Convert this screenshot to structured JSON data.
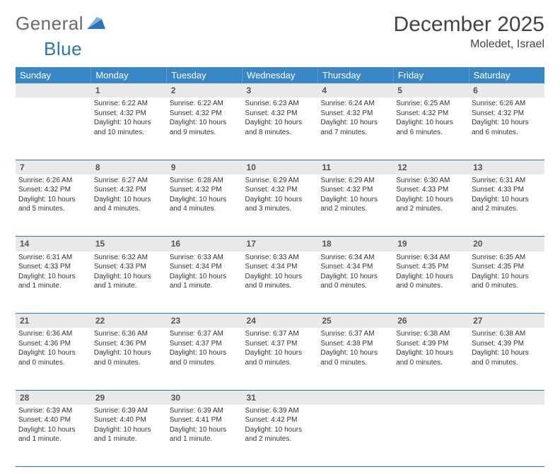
{
  "brand": {
    "word1": "General",
    "word2": "Blue"
  },
  "title": {
    "month": "December 2025",
    "location": "Moledet, Israel"
  },
  "colors": {
    "header_bg": "#3a87c8",
    "header_text": "#ffffff",
    "rule": "#2a74b8",
    "daynum_bg": "#e9e9e9",
    "logo_gray": "#6a6a6a",
    "logo_blue": "#2a74b8",
    "body_text": "#333333"
  },
  "weekdays": [
    "Sunday",
    "Monday",
    "Tuesday",
    "Wednesday",
    "Thursday",
    "Friday",
    "Saturday"
  ],
  "weeks": [
    {
      "nums": [
        "",
        "1",
        "2",
        "3",
        "4",
        "5",
        "6"
      ],
      "cells": [
        {},
        {
          "sunrise": "Sunrise: 6:22 AM",
          "sunset": "Sunset: 4:32 PM",
          "day1": "Daylight: 10 hours",
          "day2": "and 10 minutes."
        },
        {
          "sunrise": "Sunrise: 6:22 AM",
          "sunset": "Sunset: 4:32 PM",
          "day1": "Daylight: 10 hours",
          "day2": "and 9 minutes."
        },
        {
          "sunrise": "Sunrise: 6:23 AM",
          "sunset": "Sunset: 4:32 PM",
          "day1": "Daylight: 10 hours",
          "day2": "and 8 minutes."
        },
        {
          "sunrise": "Sunrise: 6:24 AM",
          "sunset": "Sunset: 4:32 PM",
          "day1": "Daylight: 10 hours",
          "day2": "and 7 minutes."
        },
        {
          "sunrise": "Sunrise: 6:25 AM",
          "sunset": "Sunset: 4:32 PM",
          "day1": "Daylight: 10 hours",
          "day2": "and 6 minutes."
        },
        {
          "sunrise": "Sunrise: 6:26 AM",
          "sunset": "Sunset: 4:32 PM",
          "day1": "Daylight: 10 hours",
          "day2": "and 6 minutes."
        }
      ]
    },
    {
      "nums": [
        "7",
        "8",
        "9",
        "10",
        "11",
        "12",
        "13"
      ],
      "cells": [
        {
          "sunrise": "Sunrise: 6:26 AM",
          "sunset": "Sunset: 4:32 PM",
          "day1": "Daylight: 10 hours",
          "day2": "and 5 minutes."
        },
        {
          "sunrise": "Sunrise: 6:27 AM",
          "sunset": "Sunset: 4:32 PM",
          "day1": "Daylight: 10 hours",
          "day2": "and 4 minutes."
        },
        {
          "sunrise": "Sunrise: 6:28 AM",
          "sunset": "Sunset: 4:32 PM",
          "day1": "Daylight: 10 hours",
          "day2": "and 4 minutes."
        },
        {
          "sunrise": "Sunrise: 6:29 AM",
          "sunset": "Sunset: 4:32 PM",
          "day1": "Daylight: 10 hours",
          "day2": "and 3 minutes."
        },
        {
          "sunrise": "Sunrise: 6:29 AM",
          "sunset": "Sunset: 4:32 PM",
          "day1": "Daylight: 10 hours",
          "day2": "and 2 minutes."
        },
        {
          "sunrise": "Sunrise: 6:30 AM",
          "sunset": "Sunset: 4:33 PM",
          "day1": "Daylight: 10 hours",
          "day2": "and 2 minutes."
        },
        {
          "sunrise": "Sunrise: 6:31 AM",
          "sunset": "Sunset: 4:33 PM",
          "day1": "Daylight: 10 hours",
          "day2": "and 2 minutes."
        }
      ]
    },
    {
      "nums": [
        "14",
        "15",
        "16",
        "17",
        "18",
        "19",
        "20"
      ],
      "cells": [
        {
          "sunrise": "Sunrise: 6:31 AM",
          "sunset": "Sunset: 4:33 PM",
          "day1": "Daylight: 10 hours",
          "day2": "and 1 minute."
        },
        {
          "sunrise": "Sunrise: 6:32 AM",
          "sunset": "Sunset: 4:33 PM",
          "day1": "Daylight: 10 hours",
          "day2": "and 1 minute."
        },
        {
          "sunrise": "Sunrise: 6:33 AM",
          "sunset": "Sunset: 4:34 PM",
          "day1": "Daylight: 10 hours",
          "day2": "and 1 minute."
        },
        {
          "sunrise": "Sunrise: 6:33 AM",
          "sunset": "Sunset: 4:34 PM",
          "day1": "Daylight: 10 hours",
          "day2": "and 0 minutes."
        },
        {
          "sunrise": "Sunrise: 6:34 AM",
          "sunset": "Sunset: 4:34 PM",
          "day1": "Daylight: 10 hours",
          "day2": "and 0 minutes."
        },
        {
          "sunrise": "Sunrise: 6:34 AM",
          "sunset": "Sunset: 4:35 PM",
          "day1": "Daylight: 10 hours",
          "day2": "and 0 minutes."
        },
        {
          "sunrise": "Sunrise: 6:35 AM",
          "sunset": "Sunset: 4:35 PM",
          "day1": "Daylight: 10 hours",
          "day2": "and 0 minutes."
        }
      ]
    },
    {
      "nums": [
        "21",
        "22",
        "23",
        "24",
        "25",
        "26",
        "27"
      ],
      "cells": [
        {
          "sunrise": "Sunrise: 6:36 AM",
          "sunset": "Sunset: 4:36 PM",
          "day1": "Daylight: 10 hours",
          "day2": "and 0 minutes."
        },
        {
          "sunrise": "Sunrise: 6:36 AM",
          "sunset": "Sunset: 4:36 PM",
          "day1": "Daylight: 10 hours",
          "day2": "and 0 minutes."
        },
        {
          "sunrise": "Sunrise: 6:37 AM",
          "sunset": "Sunset: 4:37 PM",
          "day1": "Daylight: 10 hours",
          "day2": "and 0 minutes."
        },
        {
          "sunrise": "Sunrise: 6:37 AM",
          "sunset": "Sunset: 4:37 PM",
          "day1": "Daylight: 10 hours",
          "day2": "and 0 minutes."
        },
        {
          "sunrise": "Sunrise: 6:37 AM",
          "sunset": "Sunset: 4:38 PM",
          "day1": "Daylight: 10 hours",
          "day2": "and 0 minutes."
        },
        {
          "sunrise": "Sunrise: 6:38 AM",
          "sunset": "Sunset: 4:39 PM",
          "day1": "Daylight: 10 hours",
          "day2": "and 0 minutes."
        },
        {
          "sunrise": "Sunrise: 6:38 AM",
          "sunset": "Sunset: 4:39 PM",
          "day1": "Daylight: 10 hours",
          "day2": "and 0 minutes."
        }
      ]
    },
    {
      "nums": [
        "28",
        "29",
        "30",
        "31",
        "",
        "",
        ""
      ],
      "cells": [
        {
          "sunrise": "Sunrise: 6:39 AM",
          "sunset": "Sunset: 4:40 PM",
          "day1": "Daylight: 10 hours",
          "day2": "and 1 minute."
        },
        {
          "sunrise": "Sunrise: 6:39 AM",
          "sunset": "Sunset: 4:40 PM",
          "day1": "Daylight: 10 hours",
          "day2": "and 1 minute."
        },
        {
          "sunrise": "Sunrise: 6:39 AM",
          "sunset": "Sunset: 4:41 PM",
          "day1": "Daylight: 10 hours",
          "day2": "and 1 minute."
        },
        {
          "sunrise": "Sunrise: 6:39 AM",
          "sunset": "Sunset: 4:42 PM",
          "day1": "Daylight: 10 hours",
          "day2": "and 2 minutes."
        },
        {},
        {},
        {}
      ]
    }
  ]
}
